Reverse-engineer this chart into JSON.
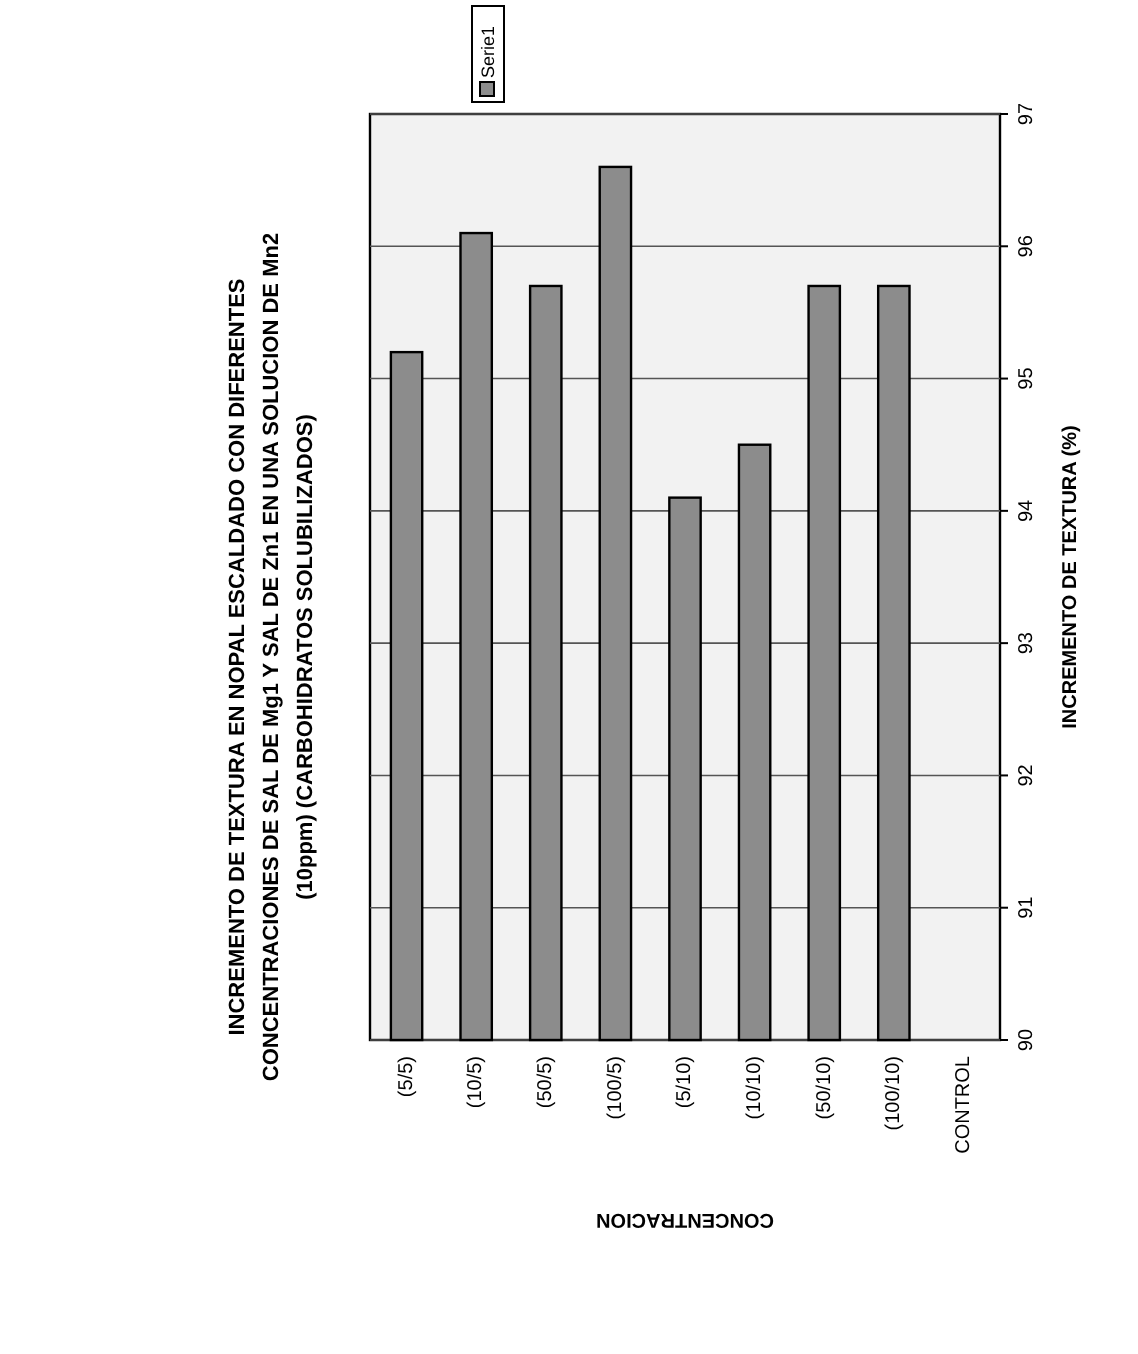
{
  "chart_data": {
    "type": "bar",
    "title": "INCREMENTO DE TEXTURA EN NOPAL ESCALDADO CON DIFERENTES CONCENTRACIONES DE SAL DE Mg1 Y SAL DE Zn1  EN UNA SOLUCION DE Mn2 (10ppm) (CARBOHIDRATOS SOLUBILIZADOS)",
    "xlabel": "CONCENTRACION",
    "ylabel": "INCREMENTO DE TEXTURA (%)",
    "categories": [
      "(5/5)",
      "(10/5)",
      "(50/5)",
      "(100/5)",
      "(5/10)",
      "(10/10)",
      "(50/10)",
      "(100/10)",
      "CONTROL"
    ],
    "series": [
      {
        "name": "Serie1",
        "color": "#8c8c8c",
        "values": [
          95.2,
          96.1,
          95.7,
          96.6,
          94.1,
          94.5,
          95.7,
          95.7,
          null
        ]
      }
    ],
    "ylim": [
      90,
      97
    ],
    "yticks": [
      90,
      91,
      92,
      93,
      94,
      95,
      96,
      97
    ],
    "grid": "y",
    "legend": "top"
  }
}
